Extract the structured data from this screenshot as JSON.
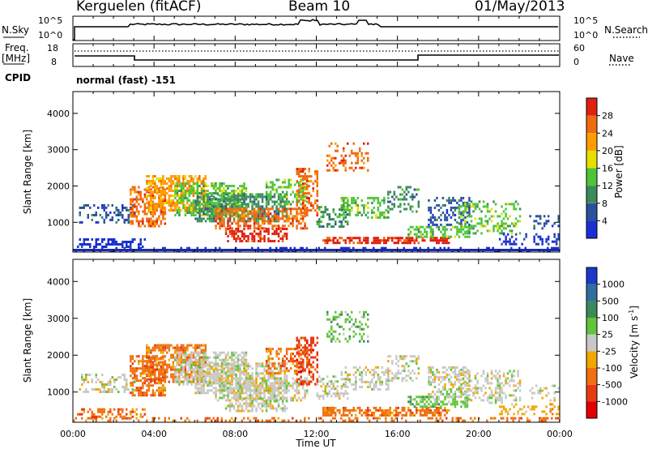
{
  "header": {
    "station": "Kerguelen (fitACF)",
    "beam": "Beam 10",
    "date": "01/May/2013"
  },
  "top_panels": {
    "nsky_label": "N.Sky",
    "nsky_ticks": [
      "10^5",
      "10^0"
    ],
    "nsearch_label": "N.Search",
    "nsearch_ticks": [
      "10^5",
      "10^0"
    ],
    "freq_label_1": "Freq.",
    "freq_label_2": "[MHz]",
    "freq_ticks": [
      "18",
      "8"
    ],
    "nave_label": "Nave",
    "nave_ticks": [
      "60",
      "0"
    ],
    "cpid_label": "CPID",
    "cpid_value": "normal (fast) -151"
  },
  "chart_data": [
    {
      "type": "heatmap",
      "name": "power",
      "ylabel": "Slant Range [km]",
      "xlabel": "Time UT",
      "y_ticks": [
        "1000",
        "2000",
        "3000",
        "4000"
      ],
      "ylim": [
        180,
        4600
      ],
      "xlim": [
        "00:00",
        "24:00"
      ],
      "colorbar_label": "Power [dB]",
      "colorbar_ticks": [
        "4",
        "8",
        "12",
        "16",
        "20",
        "24",
        "28"
      ],
      "colors": [
        "#1a2fd6",
        "#2c4f9e",
        "#3b8a5a",
        "#4fc43a",
        "#e6e000",
        "#ff9d00",
        "#f06a10",
        "#e02010"
      ]
    },
    {
      "type": "heatmap",
      "name": "velocity",
      "ylabel": "Slant Range [km]",
      "xlabel": "Time UT",
      "y_ticks": [
        "1000",
        "2000",
        "3000",
        "4000"
      ],
      "ylim": [
        180,
        4600
      ],
      "xlim": [
        "00:00",
        "24:00"
      ],
      "x_ticks": [
        "00:00",
        "04:00",
        "08:00",
        "12:00",
        "16:00",
        "20:00",
        "00:00"
      ],
      "colorbar_label": "Velocity [m s",
      "colorbar_label_sup": "-1",
      "colorbar_label_end": "]",
      "colorbar_ticks": [
        "1000",
        "500",
        "100",
        "25",
        "-25",
        "-100",
        "-500",
        "-1000"
      ],
      "colors": [
        "#1c38c8",
        "#2f6e9e",
        "#3b8a5a",
        "#62c43a",
        "#c8c8c8",
        "#f0a800",
        "#f07010",
        "#e83a10",
        "#e00000"
      ]
    }
  ]
}
